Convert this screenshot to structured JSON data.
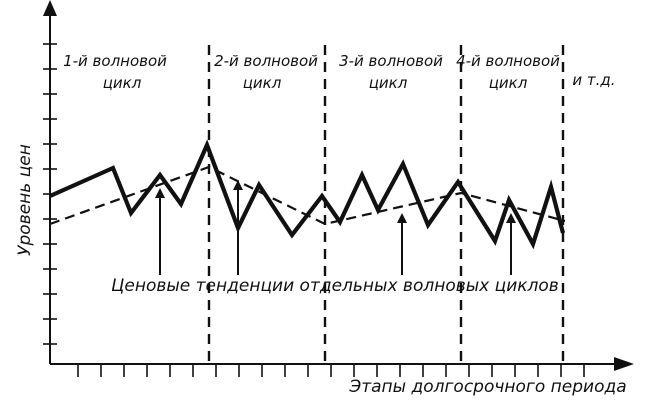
{
  "y_axis_label": "Уровень цен",
  "x_axis_label": "Этапы долгосрочного периода",
  "caption": "Ценовые тенденции отдельных волновых циклов",
  "cycles": [
    {
      "line1": "1-й волновой",
      "line2": "цикл"
    },
    {
      "line1": "2-й волновой",
      "line2": "цикл"
    },
    {
      "line1": "3-й волновой",
      "line2": "цикл"
    },
    {
      "line1": "4-й волновой",
      "line2": "цикл"
    }
  ],
  "etc_label": "и т.д.",
  "colors": {
    "ink": "#111111",
    "background": "#ffffff"
  }
}
